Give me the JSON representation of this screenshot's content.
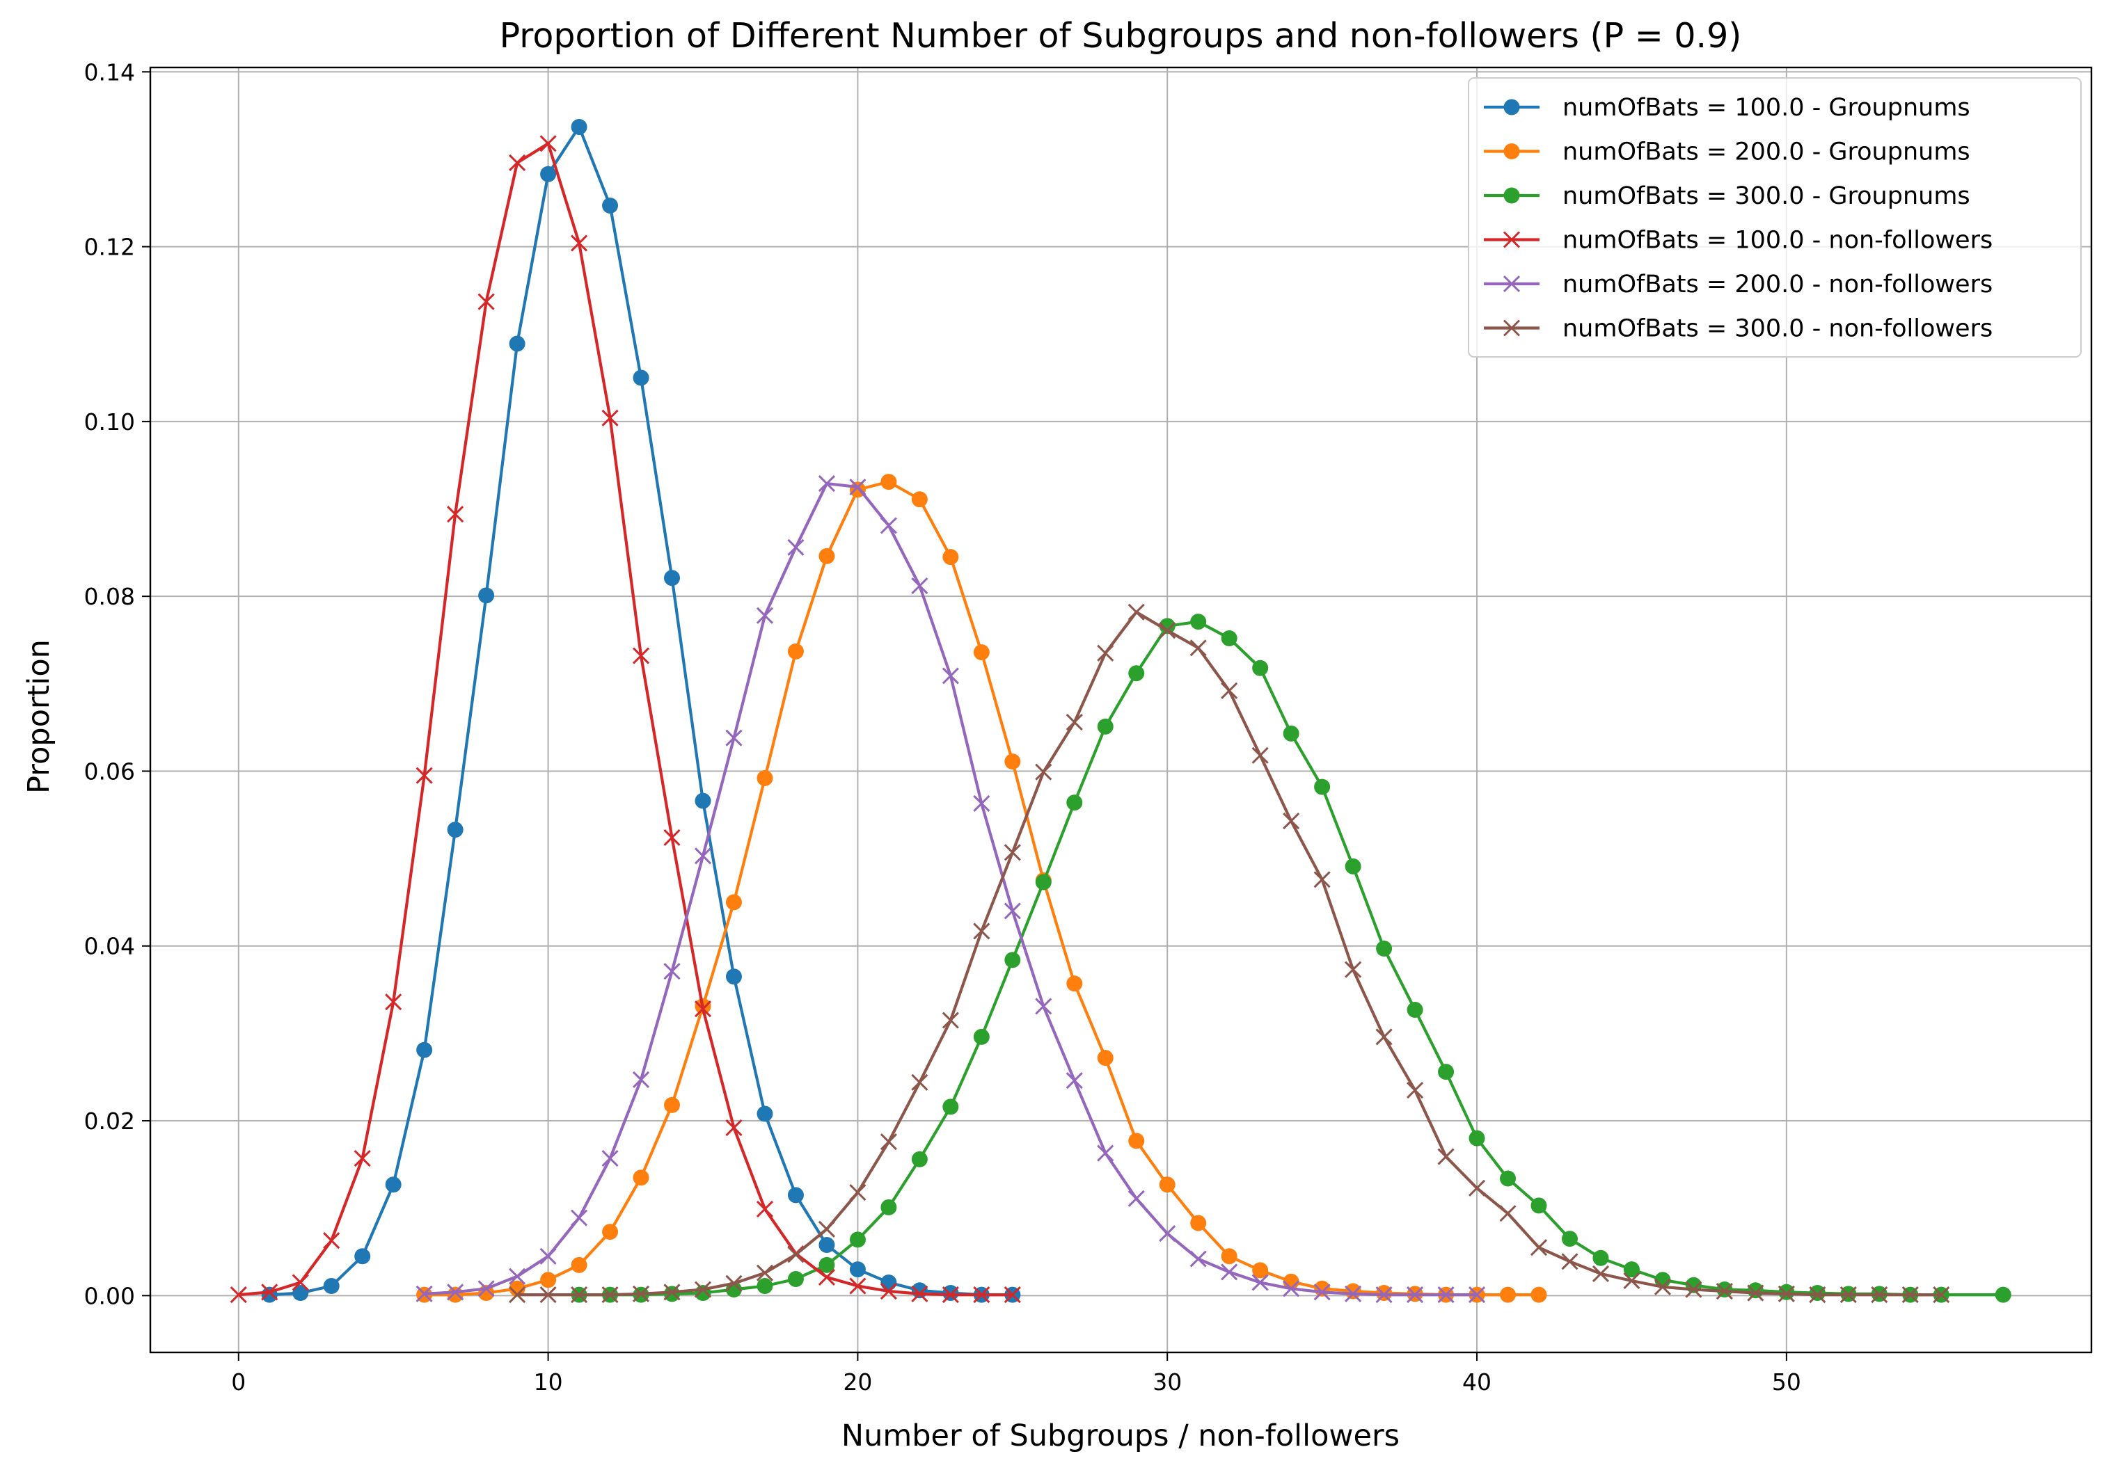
{
  "chart_data": {
    "type": "line",
    "title": "Proportion of Different Number of Subgroups and non-followers (P = 0.9)",
    "xlabel": "Number of Subgroups / non-followers",
    "ylabel": "Proportion",
    "xlim": [
      -2.85,
      59.85
    ],
    "ylim": [
      -0.0065,
      0.1405
    ],
    "xticks": [
      0,
      10,
      20,
      30,
      40,
      50
    ],
    "xtick_labels": [
      "0",
      "10",
      "20",
      "30",
      "40",
      "50"
    ],
    "yticks": [
      0.0,
      0.02,
      0.04,
      0.06,
      0.08,
      0.1,
      0.12,
      0.14
    ],
    "ytick_labels": [
      "0.00",
      "0.02",
      "0.04",
      "0.06",
      "0.08",
      "0.10",
      "0.12",
      "0.14"
    ],
    "grid": true,
    "legend_position": "top-right",
    "series": [
      {
        "name": "numOfBats = 100.0 - Groupnums",
        "color": "#1f77b4",
        "marker": "circle",
        "x": [
          1,
          2,
          3,
          4,
          5,
          6,
          7,
          8,
          9,
          10,
          11,
          12,
          13,
          14,
          15,
          16,
          17,
          18,
          19,
          20,
          21,
          22,
          23,
          24,
          25
        ],
        "y": [
          0.0001,
          0.0003,
          0.0011,
          0.0045,
          0.0127,
          0.0281,
          0.0533,
          0.0801,
          0.1089,
          0.1283,
          0.1337,
          0.1247,
          0.105,
          0.0821,
          0.0566,
          0.0365,
          0.0208,
          0.0115,
          0.0058,
          0.003,
          0.0015,
          0.0006,
          0.0003,
          0.0001,
          0.0001
        ]
      },
      {
        "name": "numOfBats = 200.0 - Groupnums",
        "color": "#ff7f0e",
        "marker": "circle",
        "x": [
          6,
          7,
          8,
          9,
          10,
          11,
          12,
          13,
          14,
          15,
          16,
          17,
          18,
          19,
          20,
          21,
          22,
          23,
          24,
          25,
          26,
          27,
          28,
          29,
          30,
          31,
          32,
          33,
          34,
          35,
          36,
          37,
          38,
          39,
          40,
          41,
          42
        ],
        "y": [
          0.0001,
          0.0001,
          0.0003,
          0.0008,
          0.0018,
          0.0035,
          0.0073,
          0.0135,
          0.0218,
          0.0331,
          0.045,
          0.0592,
          0.0737,
          0.0846,
          0.0922,
          0.0931,
          0.0911,
          0.0845,
          0.0736,
          0.0611,
          0.0475,
          0.0357,
          0.0272,
          0.0177,
          0.0127,
          0.0083,
          0.0045,
          0.0029,
          0.0016,
          0.0008,
          0.0005,
          0.0003,
          0.0002,
          0.0001,
          0.0001,
          0.0001,
          0.0001
        ]
      },
      {
        "name": "numOfBats = 300.0 - Groupnums",
        "color": "#2ca02c",
        "marker": "circle",
        "x": [
          11,
          12,
          13,
          14,
          15,
          16,
          17,
          18,
          19,
          20,
          21,
          22,
          23,
          24,
          25,
          26,
          27,
          28,
          29,
          30,
          31,
          32,
          33,
          34,
          35,
          36,
          37,
          38,
          39,
          40,
          41,
          42,
          43,
          44,
          45,
          46,
          47,
          48,
          49,
          50,
          51,
          52,
          53,
          54,
          55,
          57
        ],
        "y": [
          0.0001,
          0.0001,
          0.0001,
          0.0002,
          0.0003,
          0.0007,
          0.0011,
          0.0019,
          0.0035,
          0.0064,
          0.0101,
          0.0156,
          0.0216,
          0.0296,
          0.0384,
          0.0473,
          0.0564,
          0.0651,
          0.0712,
          0.0766,
          0.0771,
          0.0752,
          0.0718,
          0.0643,
          0.0582,
          0.0491,
          0.0397,
          0.0327,
          0.0256,
          0.018,
          0.0134,
          0.0103,
          0.0065,
          0.0043,
          0.003,
          0.0018,
          0.0012,
          0.0007,
          0.0006,
          0.0004,
          0.0003,
          0.0002,
          0.0002,
          0.0001,
          0.0001,
          0.0001
        ]
      },
      {
        "name": "numOfBats = 100.0 - non-followers",
        "color": "#d62728",
        "marker": "x",
        "x": [
          0,
          1,
          2,
          3,
          4,
          5,
          6,
          7,
          8,
          9,
          10,
          11,
          12,
          13,
          14,
          15,
          16,
          17,
          18,
          19,
          20,
          21,
          22,
          23,
          24,
          25
        ],
        "y": [
          0.0001,
          0.0004,
          0.0015,
          0.0063,
          0.0157,
          0.0336,
          0.0595,
          0.0894,
          0.1137,
          0.1296,
          0.1318,
          0.1204,
          0.1004,
          0.0732,
          0.0524,
          0.0328,
          0.0192,
          0.0099,
          0.0048,
          0.0021,
          0.0011,
          0.0005,
          0.0002,
          0.0001,
          0.0001,
          0.0001
        ]
      },
      {
        "name": "numOfBats = 200.0 - non-followers",
        "color": "#9467bd",
        "marker": "x",
        "x": [
          6,
          7,
          8,
          9,
          10,
          11,
          12,
          13,
          14,
          15,
          16,
          17,
          18,
          19,
          20,
          21,
          22,
          23,
          24,
          25,
          26,
          27,
          28,
          29,
          30,
          31,
          32,
          33,
          34,
          35,
          36,
          37,
          38,
          39,
          40
        ],
        "y": [
          0.0002,
          0.0004,
          0.0008,
          0.0022,
          0.0045,
          0.0089,
          0.0157,
          0.0247,
          0.0371,
          0.0503,
          0.0638,
          0.0778,
          0.0856,
          0.0929,
          0.0925,
          0.0881,
          0.0812,
          0.0709,
          0.0563,
          0.044,
          0.0331,
          0.0246,
          0.0163,
          0.0111,
          0.0071,
          0.0042,
          0.0027,
          0.0015,
          0.0008,
          0.0004,
          0.0002,
          0.0001,
          0.0001,
          0.0001,
          0.0001
        ]
      },
      {
        "name": "numOfBats = 300.0 - non-followers",
        "color": "#8c564b",
        "marker": "x",
        "x": [
          9,
          10,
          11,
          12,
          13,
          14,
          15,
          16,
          17,
          18,
          19,
          20,
          21,
          22,
          23,
          24,
          25,
          26,
          27,
          28,
          29,
          30,
          31,
          32,
          33,
          34,
          35,
          36,
          37,
          38,
          39,
          40,
          41,
          42,
          43,
          44,
          45,
          46,
          47,
          48,
          49,
          50,
          51,
          52,
          53,
          54,
          55
        ],
        "y": [
          0.0001,
          0.0001,
          0.0001,
          0.0001,
          0.0002,
          0.0004,
          0.0007,
          0.0014,
          0.0026,
          0.0047,
          0.0076,
          0.0118,
          0.0176,
          0.0244,
          0.0315,
          0.0417,
          0.0507,
          0.0599,
          0.0656,
          0.0735,
          0.0782,
          0.0761,
          0.0741,
          0.0692,
          0.0618,
          0.0543,
          0.0476,
          0.0373,
          0.0296,
          0.0235,
          0.0159,
          0.0123,
          0.0094,
          0.0055,
          0.0039,
          0.0025,
          0.0017,
          0.001,
          0.0007,
          0.0005,
          0.0003,
          0.0002,
          0.0001,
          0.0001,
          0.0001,
          0.0001,
          0.0001
        ]
      }
    ]
  }
}
